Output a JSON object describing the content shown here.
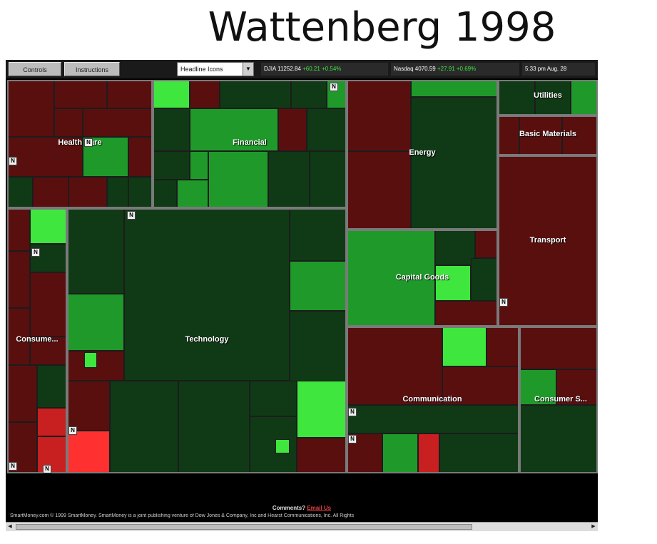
{
  "slide": {
    "title": "Wattenberg 1998"
  },
  "toolbar": {
    "controls_label": "Controls",
    "instructions_label": "Instructions",
    "view_select_value": "Headline Icons",
    "djia_label": "DJIA 11252.84",
    "djia_change": "+60.21 +0.54%",
    "nasdaq_label": "Nasdaq 4070.59",
    "nasdaq_change": "+27.91 +0.69%",
    "time": "5:33 pm Aug. 28"
  },
  "treemap": {
    "sectors": [
      {
        "name": "Health Care"
      },
      {
        "name": "Financial"
      },
      {
        "name": "Energy"
      },
      {
        "name": "Utilities"
      },
      {
        "name": "Basic Materials"
      },
      {
        "name": "Transport"
      },
      {
        "name": "Technology"
      },
      {
        "name": "Consume..."
      },
      {
        "name": "Capital Goods"
      },
      {
        "name": "Communication"
      },
      {
        "name": "Consumer S..."
      }
    ],
    "badge_label": "N",
    "colors": {
      "dark_red": "#5a0f0f",
      "red": "#c82020",
      "bright_red": "#ff3030",
      "dark_green": "#0f3a15",
      "green": "#1f9a2a",
      "bright_green": "#3ee63e"
    }
  },
  "footer": {
    "comments_label": "Comments?",
    "comments_link": "Email Us",
    "copyright": "SmartMoney.com © 1999 SmartMoney. SmartMoney is a joint publishing venture of Dow Jones & Company, Inc and Hearst Communications, Inc. All Rights"
  }
}
